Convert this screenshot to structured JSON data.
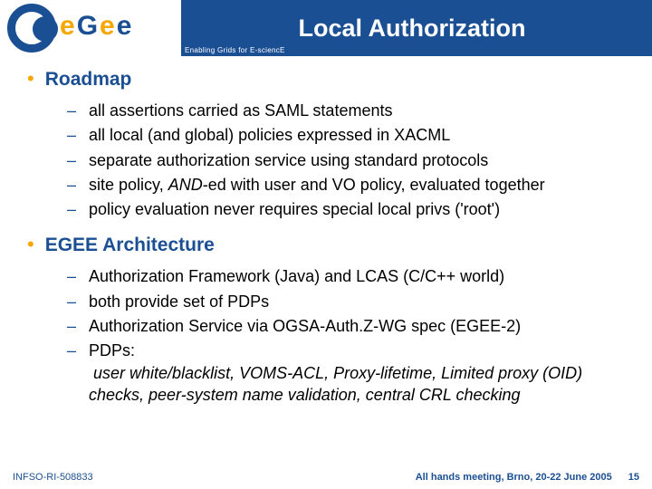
{
  "header": {
    "tagline": "Enabling Grids for E-sciencE",
    "title": "Local Authorization",
    "logo_letters": {
      "e1": "e",
      "g": "G",
      "e2": "e",
      "e3": "e"
    }
  },
  "sections": [
    {
      "heading": "Roadmap",
      "items": [
        {
          "text": "all assertions carried as SAML statements"
        },
        {
          "text": "all local (and global) policies expressed in XACML"
        },
        {
          "text": "separate authorization service using standard protocols"
        },
        {
          "text_prefix": "site policy, ",
          "text_italic": "AND",
          "text_suffix": "-ed with user and VO policy, evaluated together"
        },
        {
          "text": "policy evaluation never requires special local privs ('root')"
        }
      ]
    },
    {
      "heading": "EGEE Architecture",
      "items": [
        {
          "text": "Authorization Framework (Java) and LCAS (C/C++ world)"
        },
        {
          "text": "both provide set of PDPs"
        },
        {
          "text": "Authorization Service via OGSA-Auth.Z-WG spec (EGEE-2)"
        },
        {
          "text_prefix": "PDPs:\n",
          "text_italic": "user white/blacklist, VOMS-ACL, Proxy-lifetime, Limited proxy (OID) checks, peer-system name validation, central CRL checking",
          "text_suffix": ""
        }
      ]
    }
  ],
  "footer": {
    "left": "INFSO-RI-508833",
    "right": "All hands meeting, Brno, 20-22 June 2005",
    "page": "15"
  },
  "colors": {
    "brand_blue": "#1b4f93",
    "brand_orange": "#f6a800",
    "text_black": "#000000",
    "background": "#ffffff"
  }
}
